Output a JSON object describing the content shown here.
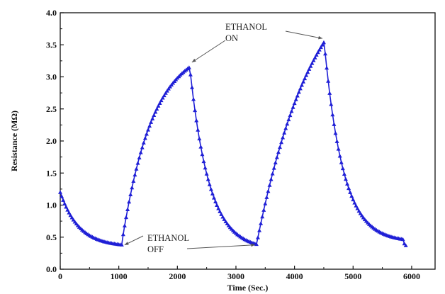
{
  "chart_data": {
    "type": "line",
    "xlabel": "Time (Sec.)",
    "ylabel": "Resistance (MΩ)",
    "xlim": [
      0,
      6400
    ],
    "ylim": [
      0.0,
      4.0
    ],
    "xticks": [
      0,
      1000,
      2000,
      3000,
      4000,
      5000,
      6000
    ],
    "yticks": [
      0.0,
      0.5,
      1.0,
      1.5,
      2.0,
      2.5,
      3.0,
      3.5,
      4.0
    ],
    "grid": false,
    "legend": false,
    "series_color": "#1f1fd6",
    "marker": "triangle",
    "segments": [
      {
        "phase": "off",
        "t0": 0,
        "t1": 1050,
        "y0": 1.2,
        "yinf": 0.35,
        "tau": 320
      },
      {
        "phase": "on",
        "t0": 1050,
        "t1": 2200,
        "y0": 0.4,
        "yinf": 3.5,
        "tau": 530
      },
      {
        "phase": "off",
        "t0": 2200,
        "t1": 3350,
        "y0": 3.25,
        "yinf": 0.3,
        "tau": 330
      },
      {
        "phase": "on",
        "t0": 3350,
        "t1": 4500,
        "y0": 0.38,
        "yinf": 5.0,
        "tau": 1000
      },
      {
        "phase": "off",
        "t0": 4500,
        "t1": 5850,
        "y0": 3.6,
        "yinf": 0.42,
        "tau": 320
      }
    ],
    "annotations": [
      {
        "id": "ethanol-on",
        "lines": [
          "ETHANOL",
          "ON"
        ],
        "points_to": [
          2200,
          3.25
        ],
        "points_to_2": [
          4500,
          3.6
        ]
      },
      {
        "id": "ethanol-off",
        "lines": [
          "ETHANOL",
          "OFF"
        ],
        "points_to": [
          1050,
          0.4
        ],
        "points_to_2": [
          3350,
          0.38
        ]
      }
    ]
  }
}
